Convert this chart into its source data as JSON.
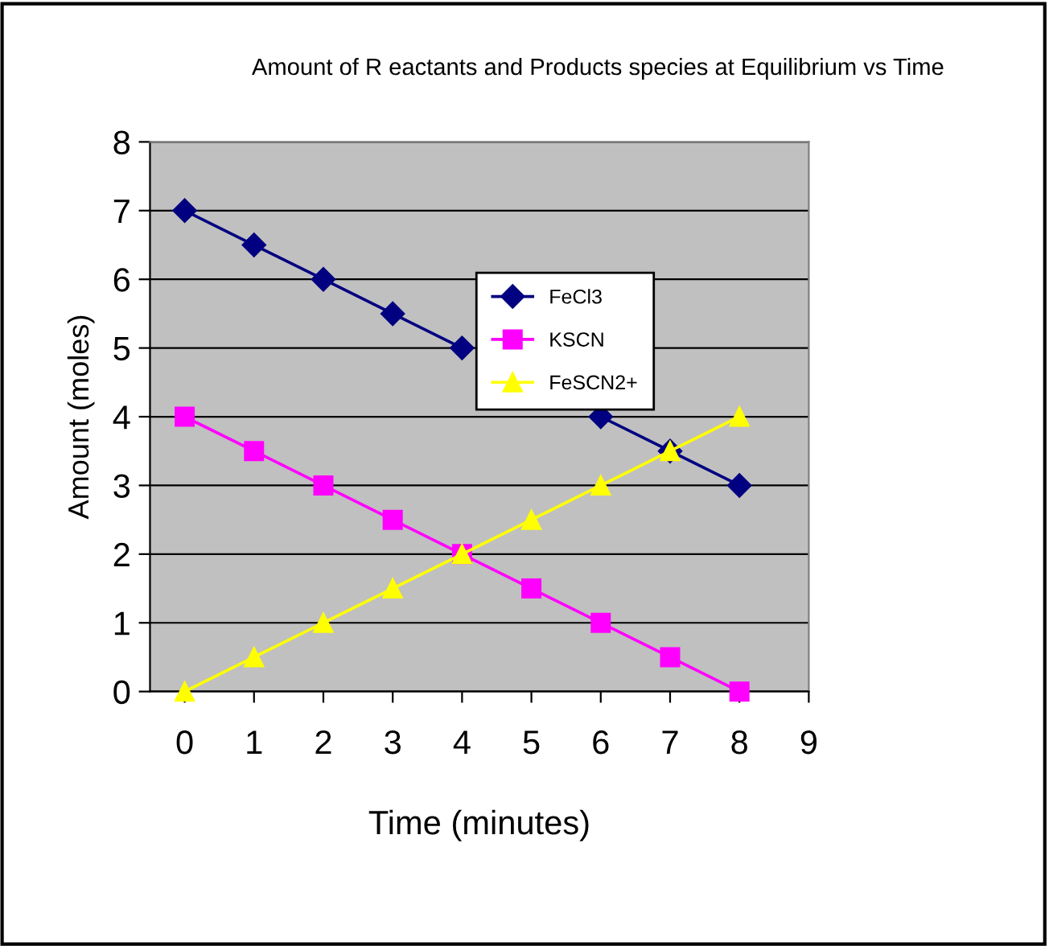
{
  "chart_data": {
    "type": "line",
    "title": "Amount of R eactants and Products species at Equilibrium vs Time",
    "xlabel": "Time (minutes)",
    "ylabel": "Amount (moles)",
    "x": [
      0,
      1,
      2,
      3,
      4,
      5,
      6,
      7,
      8
    ],
    "series": [
      {
        "name": "FeCl3",
        "color": "#000080",
        "marker": "diamond",
        "values": [
          7,
          6.5,
          6,
          5.5,
          5,
          null,
          4,
          3.5,
          3
        ]
      },
      {
        "name": "KSCN",
        "color": "#ff00ff",
        "marker": "square",
        "values": [
          4,
          3.5,
          3,
          2.5,
          2,
          1.5,
          1,
          0.5,
          0
        ]
      },
      {
        "name": "FeSCN2+",
        "color": "#ffff00",
        "marker": "triangle",
        "values": [
          0,
          0.5,
          1,
          1.5,
          2,
          2.5,
          3,
          3.5,
          4
        ]
      }
    ],
    "xlim": [
      -0.5,
      9
    ],
    "xticks": [
      0,
      1,
      2,
      3,
      4,
      5,
      6,
      7,
      8,
      9
    ],
    "ylim": [
      0,
      8
    ],
    "yticks": [
      0,
      1,
      2,
      3,
      4,
      5,
      6,
      7,
      8
    ],
    "grid": "y",
    "legend": "top right",
    "line_style": "solid"
  }
}
